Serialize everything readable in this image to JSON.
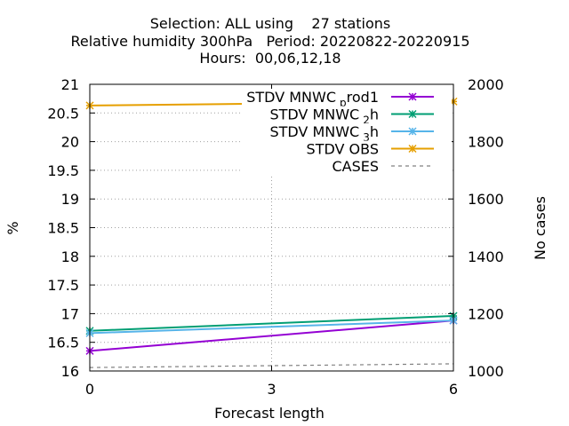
{
  "title_lines": [
    "Selection: ALL using    27 stations",
    "Relative humidity 300hPa   Period: 20220822-20220915",
    "Hours:  00,06,12,18"
  ],
  "chart_data": {
    "type": "line",
    "title": "Selection: ALL using 27 stations / Relative humidity 300hPa Period: 20220822-20220915 / Hours: 00,06,12,18",
    "xlabel": "Forecast length",
    "ylabel": "%",
    "y2label": "No cases",
    "x": [
      0,
      6
    ],
    "xticks": [
      0,
      3,
      6
    ],
    "xlim": [
      0,
      6
    ],
    "ylim": [
      16,
      21
    ],
    "yticks": [
      16,
      16.5,
      17,
      17.5,
      18,
      18.5,
      19,
      19.5,
      20,
      20.5,
      21
    ],
    "y2lim": [
      1000,
      2000
    ],
    "y2ticks": [
      1000,
      1200,
      1400,
      1600,
      1800,
      2000
    ],
    "grid": true,
    "legend_position": "top-right",
    "series": [
      {
        "name": "STDV MNWC_prod1",
        "label_main": "STDV MNWC",
        "label_sub": "p",
        "label_rest": "rod1",
        "axis": "y1",
        "color": "#9400d3",
        "marker": "x",
        "dash": "solid",
        "values": [
          16.35,
          16.88
        ]
      },
      {
        "name": "STDV MNWC_2h",
        "label_main": "STDV MNWC",
        "label_sub": "2",
        "label_rest": "h",
        "axis": "y1",
        "color": "#009e73",
        "marker": "x",
        "dash": "solid",
        "values": [
          16.7,
          16.96
        ]
      },
      {
        "name": "STDV MNWC_3h",
        "label_main": "STDV MNWC",
        "label_sub": "3",
        "label_rest": "h",
        "axis": "y1",
        "color": "#56b4e9",
        "marker": "x",
        "dash": "solid",
        "values": [
          16.66,
          16.88
        ]
      },
      {
        "name": "STDV OBS",
        "label_main": "STDV OBS",
        "label_sub": "",
        "label_rest": "",
        "axis": "y1",
        "color": "#e69f00",
        "marker": "x",
        "dash": "solid",
        "values": [
          20.63,
          20.7
        ]
      },
      {
        "name": "CASES",
        "label_main": "CASES",
        "label_sub": "",
        "label_rest": "",
        "axis": "y2",
        "color": "#808080",
        "marker": "none",
        "dash": "dashed",
        "values": [
          1012,
          1025
        ]
      }
    ]
  }
}
